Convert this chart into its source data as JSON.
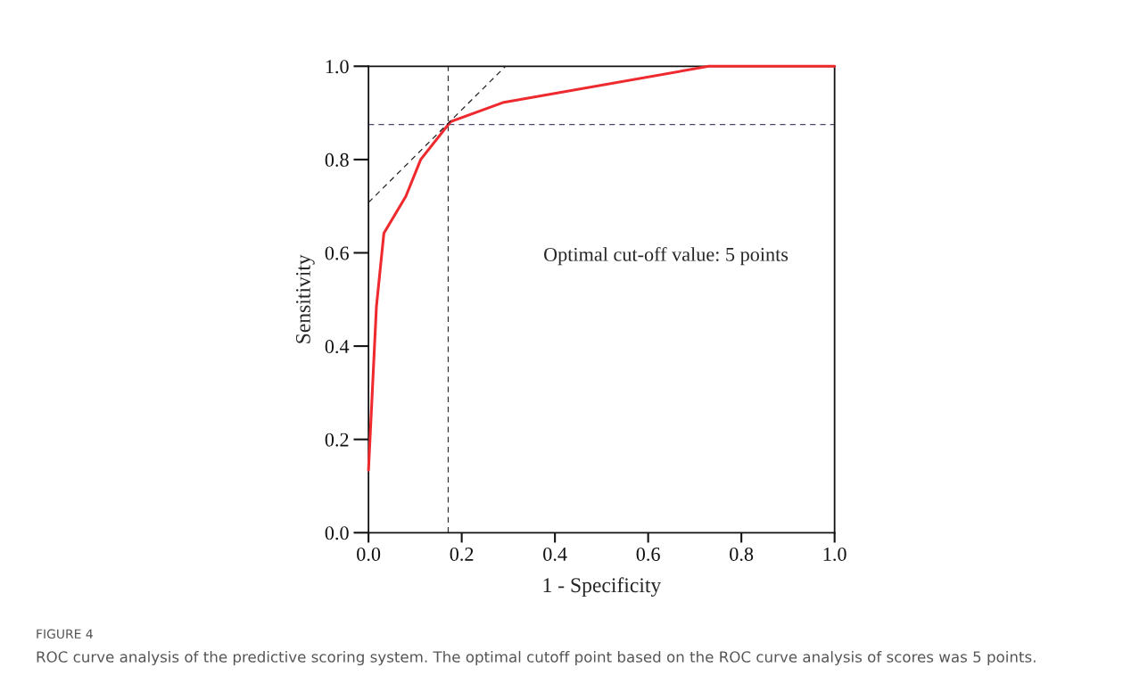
{
  "chart_data": {
    "type": "line",
    "xlabel": "1 - Specificity",
    "ylabel": "Sensitivity",
    "xlim": [
      0,
      1
    ],
    "ylim": [
      0,
      1
    ],
    "xticks": [
      {
        "value": 0,
        "label": "0.0"
      },
      {
        "value": 0.2,
        "label": "0.2"
      },
      {
        "value": 0.4,
        "label": "0.4"
      },
      {
        "value": 0.6,
        "label": "0.6"
      },
      {
        "value": 0.8,
        "label": "0.8"
      },
      {
        "value": 1,
        "label": "1.0"
      }
    ],
    "yticks": [
      {
        "value": 0,
        "label": "0.0"
      },
      {
        "value": 0.2,
        "label": "0.2"
      },
      {
        "value": 0.4,
        "label": "0.4"
      },
      {
        "value": 0.6,
        "label": "0.6"
      },
      {
        "value": 0.8,
        "label": "0.8"
      },
      {
        "value": 1,
        "label": "1.0"
      }
    ],
    "series": [
      {
        "color": "#ee2a2f",
        "line_style": "solid",
        "x": [
          0,
          0.017,
          0.033,
          0.08,
          0.112,
          0.176,
          0.288,
          0.73,
          1.0
        ],
        "values": [
          0.134,
          0.485,
          0.642,
          0.721,
          0.8,
          0.881,
          0.922,
          1.0,
          1.0
        ]
      },
      {
        "color": "#222222",
        "line_style": "dashed",
        "x": [
          0,
          0.294
        ],
        "values": [
          0.708,
          1.0
        ]
      }
    ],
    "ref_lines": [
      {
        "axis": "x",
        "value": 0.171,
        "color": "#333333",
        "line_style": "dashed"
      },
      {
        "axis": "y",
        "value": 0.875,
        "color": "#4e4670",
        "line_style": "dashed"
      }
    ],
    "annotations": [
      "Optimal cut-off value: 5 points",
      "FIGURE 4",
      "ROC curve analysis of the predictive scoring system. The optimal cutoff point based on the ROC curve analysis of scores was 5 points."
    ],
    "grid": false,
    "legend": false
  }
}
